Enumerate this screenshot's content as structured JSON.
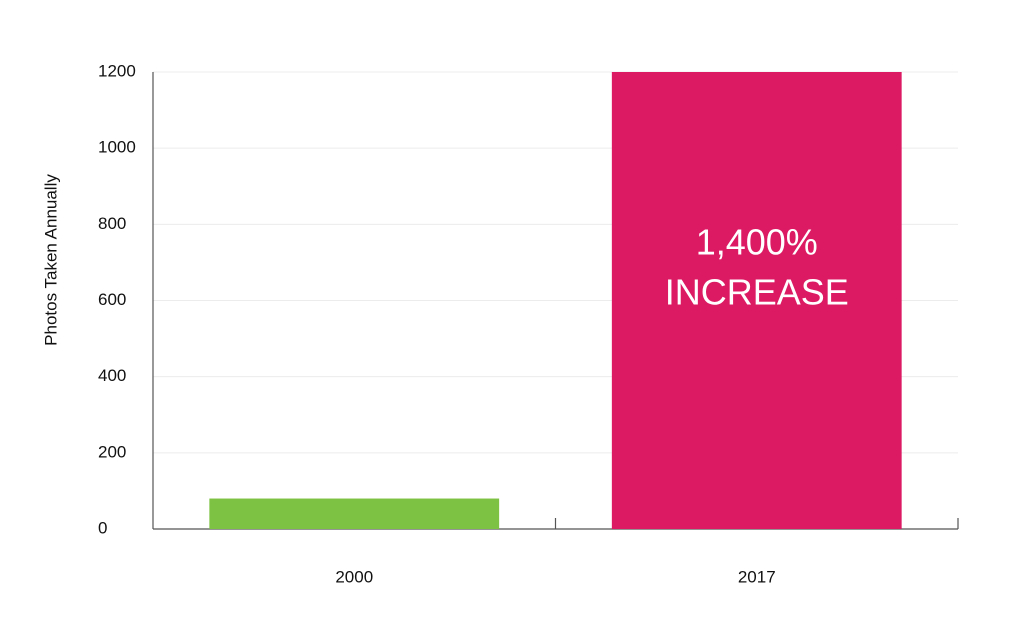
{
  "chart_data": {
    "type": "bar",
    "y_label": "Photos Taken Annually",
    "categories": [
      "2000",
      "2017"
    ],
    "values": [
      80,
      1200
    ],
    "colors": [
      "#7dc243",
      "#dc1a63"
    ],
    "ylim": [
      0,
      1200
    ],
    "yticks": [
      0,
      200,
      400,
      600,
      800,
      1000,
      1200
    ],
    "grid": true,
    "annotation": [
      "1,400%",
      "INCREASE"
    ]
  }
}
